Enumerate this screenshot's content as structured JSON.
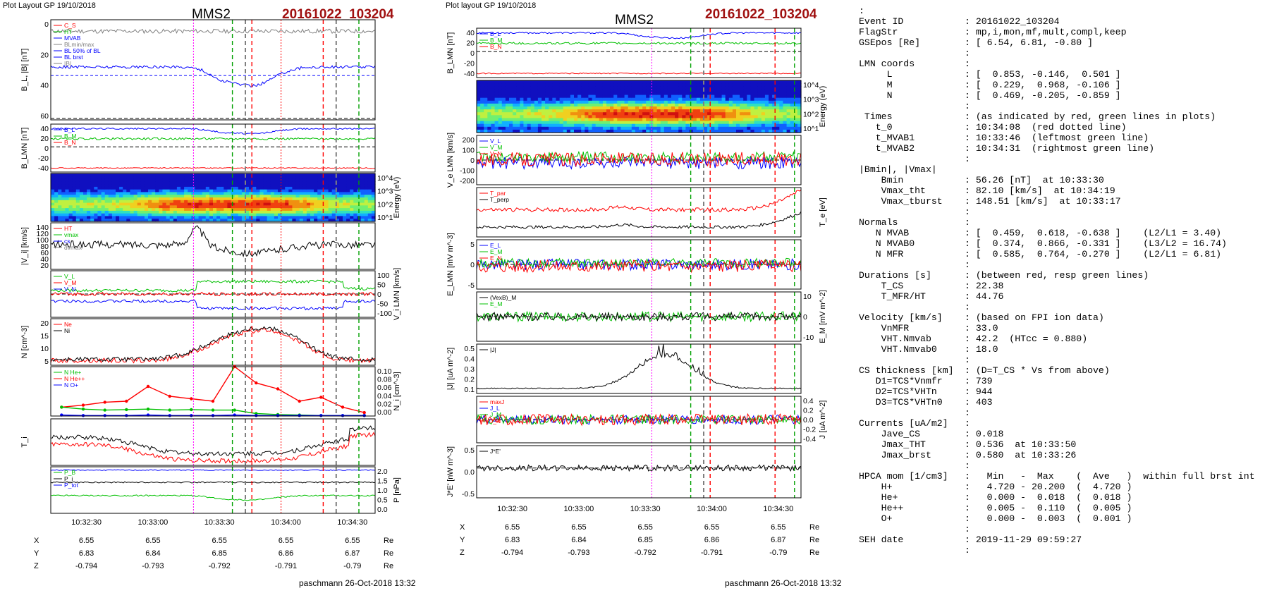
{
  "left_plot": {
    "header": "Plot Layout GP 19/10/2018",
    "spacecraft": "MMS2",
    "event": "20161022_103204",
    "footer": "paschmann 26-Oct-2018 13:32",
    "time_ticks": [
      "10:32:30",
      "10:33:00",
      "10:33:30",
      "10:34:00",
      "10:34:30"
    ],
    "position_table": {
      "labels": [
        "X",
        "Y",
        "Z"
      ],
      "unit": "Re",
      "rows": [
        [
          "6.55",
          "6.55",
          "6.55",
          "6.55",
          "6.55"
        ],
        [
          "6.83",
          "6.84",
          "6.85",
          "6.86",
          "6.87"
        ],
        [
          "-0.794",
          "-0.793",
          "-0.792",
          "-0.791",
          "-0.79"
        ]
      ]
    }
  },
  "right_plot": {
    "header": "Plot layout GP 19/10/2018",
    "spacecraft": "MMS2",
    "event": "20161022_103204",
    "footer": "paschmann 26-Oct-2018 13:32",
    "time_ticks": [
      "10:32:30",
      "10:33:00",
      "10:33:30",
      "10:34:00",
      "10:34:30"
    ],
    "position_table": {
      "labels": [
        "X",
        "Y",
        "Z"
      ],
      "unit": "Re",
      "rows": [
        [
          "6.55",
          "6.55",
          "6.55",
          "6.55",
          "6.55"
        ],
        [
          "6.83",
          "6.84",
          "6.85",
          "6.86",
          "6.87"
        ],
        [
          "-0.794",
          "-0.793",
          "-0.792",
          "-0.791",
          "-0.79"
        ]
      ]
    }
  },
  "summary": {
    "lead": ":",
    "rows": [
      {
        "k": "Event ID",
        "v": ": 20161022_103204"
      },
      {
        "k": "FlagStr",
        "v": ": mp,i,mon,mf,mult,compl,keep"
      },
      {
        "k": "GSEpos [Re]",
        "v": ": [ 6.54, 6.81, -0.80 ]"
      },
      {
        "k": "",
        "v": ":"
      },
      {
        "k": "LMN coords",
        "v": ":"
      },
      {
        "k": "     L",
        "v": ": [  0.853, -0.146,  0.501 ]"
      },
      {
        "k": "     M",
        "v": ": [  0.229,  0.968, -0.106 ]"
      },
      {
        "k": "     N",
        "v": ": [  0.469, -0.205, -0.859 ]"
      },
      {
        "k": "",
        "v": ":"
      },
      {
        "k": " Times",
        "v": ": (as indicated by red, green lines in plots)"
      },
      {
        "k": "   t_0",
        "v": ": 10:34:08  (red dotted line)"
      },
      {
        "k": "   t_MVAB1",
        "v": ": 10:33:46  (leftmost green line)"
      },
      {
        "k": "   t_MVAB2",
        "v": ": 10:34:31  (rightmost green line)"
      },
      {
        "k": "",
        "v": ":"
      },
      {
        "k": "|Bmin|, |Vmax|",
        "v": ""
      },
      {
        "k": "    Bmin",
        "v": ": 56.26 [nT]  at 10:33:30"
      },
      {
        "k": "    Vmax_tht",
        "v": ": 82.10 [km/s]  at 10:34:19"
      },
      {
        "k": "    Vmax_tburst",
        "v": ": 148.51 [km/s]  at 10:33:17"
      },
      {
        "k": "",
        "v": ":"
      },
      {
        "k": "Normals",
        "v": ":"
      },
      {
        "k": "   N MVAB",
        "v": ": [  0.459,  0.618, -0.638 ]    (L2/L1 = 3.40)"
      },
      {
        "k": "   N MVAB0",
        "v": ": [  0.374,  0.866, -0.331 ]    (L3/L2 = 16.74)"
      },
      {
        "k": "   N MFR",
        "v": ": [  0.585,  0.764, -0.270 ]    (L2/L1 = 6.81)"
      },
      {
        "k": "",
        "v": ":"
      },
      {
        "k": "Durations [s]",
        "v": ": (between red, resp green lines)"
      },
      {
        "k": "    T_CS",
        "v": ": 22.38"
      },
      {
        "k": "    T_MFR/HT",
        "v": ": 44.76"
      },
      {
        "k": "",
        "v": ":"
      },
      {
        "k": "Velocity [km/s]",
        "v": ": (based on FPI ion data)"
      },
      {
        "k": "    VnMFR",
        "v": ": 33.0"
      },
      {
        "k": "    VHT.Nmvab",
        "v": ": 42.2  (HTcc = 0.880)"
      },
      {
        "k": "    VHT.Nmvab0",
        "v": ": 18.0"
      },
      {
        "k": "",
        "v": ":"
      },
      {
        "k": "CS thickness [km]",
        "v": ": (D=T_CS * Vs from above)"
      },
      {
        "k": "   D1=TCS*Vnmfr",
        "v": ": 739"
      },
      {
        "k": "   D2=TCS*VHTn",
        "v": ": 944"
      },
      {
        "k": "   D3=TCS*VHTn0",
        "v": ": 403"
      },
      {
        "k": "",
        "v": ":"
      },
      {
        "k": "Currents [uA/m2]",
        "v": ":"
      },
      {
        "k": "    Jave_CS",
        "v": ": 0.018"
      },
      {
        "k": "    Jmax_THT",
        "v": ": 0.536  at 10:33:50"
      },
      {
        "k": "    Jmax_brst",
        "v": ": 0.580  at 10:33:26"
      },
      {
        "k": "",
        "v": ":"
      },
      {
        "k": "HPCA mom [1/cm3]",
        "v": ":   Min   -  Max    (  Ave   )  within full brst int"
      },
      {
        "k": "    H+",
        "v": ":   4.720 - 20.200  (  4.720 )"
      },
      {
        "k": "    He+",
        "v": ":   0.000 -  0.018  (  0.018 )"
      },
      {
        "k": "    He++",
        "v": ":   0.005 -  0.110  (  0.005 )"
      },
      {
        "k": "    O+",
        "v": ":   0.000 -  0.003  (  0.001 )"
      },
      {
        "k": "",
        "v": ":"
      },
      {
        "k": "SEH date",
        "v": ": 2019-11-29 09:59:27"
      },
      {
        "k": "",
        "v": ":"
      }
    ]
  },
  "chart_data": [
    {
      "type": "line",
      "id": "left-B",
      "ylabel": "B_L, |B| [nT]",
      "ylim": [
        0,
        70
      ],
      "yticks": [
        "0",
        "20",
        "40",
        "60"
      ],
      "legend": [
        "C_S",
        "HT",
        "MVAB",
        "BLmin/max",
        "BL 50% of BL",
        "BL brst",
        "|B|"
      ],
      "series": [
        {
          "name": "|B|",
          "color": "#808080",
          "shape": "flat",
          "base": 62,
          "amp": 3,
          "noise": 1.5
        },
        {
          "name": "BL brst",
          "color": "#0000ff",
          "shape": "dip",
          "base": 37,
          "amp": 13,
          "noise": 1
        }
      ],
      "hlines": [
        {
          "v": 31,
          "color": "#0000ff",
          "dash": "4,3"
        },
        {
          "v": 1,
          "color": "#000",
          "dash": "5,3"
        }
      ]
    },
    {
      "type": "line",
      "id": "left-BLMN",
      "ylabel": "B_LMN [nT]",
      "ylim": [
        -50,
        45
      ],
      "yticks": [
        "40",
        "20",
        "0",
        "-20",
        "-40"
      ],
      "legend": [
        "B_L",
        "B_M",
        "B_N"
      ],
      "series": [
        {
          "name": "B_L",
          "color": "#0000ff",
          "shape": "dip",
          "base": 36,
          "amp": 10,
          "noise": 1.5
        },
        {
          "name": "B_M",
          "color": "#00c000",
          "shape": "flat",
          "base": 16,
          "amp": 6,
          "noise": 2
        },
        {
          "name": "B_N",
          "color": "#ff0000",
          "shape": "flat",
          "base": -42,
          "amp": 2,
          "noise": 1
        }
      ],
      "hlines": [
        {
          "v": 0,
          "color": "#000",
          "dash": "5,3"
        }
      ]
    },
    {
      "type": "heatmap",
      "id": "left-spec",
      "ylabel": "Energy (eV)",
      "yticks": [
        "10^4",
        "10^3",
        "10^2",
        "10^1"
      ]
    },
    {
      "type": "line",
      "id": "left-Vi",
      "ylabel": "|V_i| [km/s]",
      "ylim": [
        0,
        150
      ],
      "yticks": [
        "140",
        "120",
        "100",
        "80",
        "60",
        "40",
        "20"
      ],
      "legend": [
        "HT",
        "vmax",
        "cs",
        "dvmax"
      ],
      "series": [
        {
          "name": "|Vi|",
          "color": "#000000",
          "shape": "vpeak",
          "base": 80,
          "amp": 55,
          "noise": 12
        }
      ]
    },
    {
      "type": "line",
      "id": "left-ViLMN",
      "ylabel": "V_i LMN [km/s]",
      "ylim": [
        -130,
        130
      ],
      "yticks": [
        "100",
        "50",
        "0",
        "-50",
        "-100"
      ],
      "legend": [
        "V_L",
        "V_M",
        "V_N"
      ],
      "series": [
        {
          "name": "V_L",
          "color": "#00c000",
          "shape": "rise",
          "base": 20,
          "amp": 50,
          "noise": 8
        },
        {
          "name": "V_M",
          "color": "#ff0000",
          "shape": "flat",
          "base": 0,
          "amp": 10,
          "noise": 10
        },
        {
          "name": "V_N",
          "color": "#0000ff",
          "shape": "drop",
          "base": -40,
          "amp": 40,
          "noise": 8
        }
      ],
      "hlines": [
        {
          "v": 0,
          "color": "#000",
          "dash": "5,3"
        }
      ]
    },
    {
      "type": "line",
      "id": "left-N",
      "ylabel": "N [cm^-3]",
      "ylim": [
        3,
        23
      ],
      "yticks": [
        "20",
        "15",
        "10",
        "5"
      ],
      "legend": [
        "Ne",
        "Ni"
      ],
      "series": [
        {
          "name": "Ne",
          "color": "#ff0000",
          "shape": "hump",
          "base": 5,
          "amp": 13,
          "noise": 1
        },
        {
          "name": "Ni",
          "color": "#000000",
          "shape": "hump",
          "base": 5.5,
          "amp": 13.5,
          "noise": 1
        }
      ]
    },
    {
      "type": "line",
      "id": "left-HPCA",
      "ylabel": "N_i [cm^-3]",
      "ylim": [
        0,
        0.1
      ],
      "yticks": [
        "0.10",
        "0.08",
        "0.06",
        "0.04",
        "0.02",
        "0.00"
      ],
      "legend": [
        "N He+",
        "N He++",
        "N O+"
      ],
      "series": [
        {
          "name": "N He++",
          "color": "#ff0000",
          "points": [
            0.018,
            0.022,
            0.028,
            0.03,
            0.06,
            0.04,
            0.035,
            0.03,
            0.11,
            0.067,
            0.055,
            0.03,
            0.038,
            0.018,
            0.007
          ]
        },
        {
          "name": "N He+",
          "color": "#00c000",
          "points": [
            0.018,
            0.014,
            0.012,
            0.013,
            0.014,
            0.012,
            0.013,
            0.012,
            0.012,
            0.005,
            0.003,
            0.002,
            0.001,
            0.001,
            0.001
          ]
        },
        {
          "name": "N O+",
          "color": "#0000ff",
          "points": [
            0.002,
            0.001,
            0.001,
            0.001,
            0.002,
            0.001,
            0.001,
            0.001,
            0.002,
            0.001,
            0.001,
            0.001,
            0.001,
            0.001,
            0.001
          ]
        }
      ]
    },
    {
      "type": "line",
      "id": "left-Ti",
      "ylabel": "T_i",
      "series": [
        {
          "name": "T_par",
          "color": "#000000",
          "shape": "valley",
          "base": 0.6,
          "amp": 0.35,
          "noise": 0.05
        },
        {
          "name": "T_perp",
          "color": "#ff0000",
          "shape": "valley",
          "base": 0.45,
          "amp": 0.35,
          "noise": 0.05
        }
      ]
    },
    {
      "type": "line",
      "id": "left-P",
      "ylabel": "P [nPa]",
      "ylim": [
        0,
        2.1
      ],
      "yticks": [
        "2.0",
        "1.5",
        "1.0",
        "0.5",
        "0.0"
      ],
      "legend": [
        "P_B",
        "P_i",
        "P_tot"
      ],
      "series": [
        {
          "name": "P_tot",
          "color": "#0000ff",
          "shape": "flat",
          "base": 1.95,
          "amp": 0.05,
          "noise": 0.02
        },
        {
          "name": "P_i",
          "color": "#000000",
          "shape": "flat",
          "base": 1.4,
          "amp": 0.1,
          "noise": 0.03
        },
        {
          "name": "P_B",
          "color": "#00c000",
          "shape": "dip",
          "base": 0.8,
          "amp": 0.2,
          "noise": 0.03
        }
      ]
    },
    {
      "type": "line",
      "id": "right-BLMN",
      "ylabel": "B_LMN [nT]",
      "ylim": [
        -50,
        45
      ],
      "yticks": [
        "40",
        "20",
        "0",
        "-20",
        "-40"
      ],
      "legend": [
        "B_L",
        "B_M",
        "B_N"
      ],
      "series": [
        {
          "name": "B_L",
          "color": "#0000ff",
          "shape": "dip",
          "base": 36,
          "amp": 10,
          "noise": 1.5
        },
        {
          "name": "B_M",
          "color": "#00c000",
          "shape": "flat",
          "base": 16,
          "amp": 6,
          "noise": 2
        },
        {
          "name": "B_N",
          "color": "#ff0000",
          "shape": "flat",
          "base": -42,
          "amp": 2,
          "noise": 1
        }
      ],
      "hlines": [
        {
          "v": 0,
          "color": "#000",
          "dash": "5,3"
        }
      ]
    },
    {
      "type": "heatmap",
      "id": "right-spec",
      "ylabel": "Energy (eV)",
      "yticks": [
        "10^4",
        "10^3",
        "10^2",
        "10^1"
      ]
    },
    {
      "type": "line",
      "id": "right-Ve",
      "ylabel": "V_e LMN [km/s]",
      "ylim": [
        -250,
        250
      ],
      "yticks": [
        "200",
        "100",
        "0",
        "-100",
        "-200"
      ],
      "legend": [
        "V_L",
        "V_M",
        "V_N"
      ],
      "series": [
        {
          "name": "V_L",
          "color": "#0000ff",
          "shape": "flat",
          "base": -30,
          "amp": 0,
          "noise": 60
        },
        {
          "name": "V_M",
          "color": "#00c000",
          "shape": "flat",
          "base": 30,
          "amp": 0,
          "noise": 55
        },
        {
          "name": "V_N",
          "color": "#ff0000",
          "shape": "flat",
          "base": 10,
          "amp": 0,
          "noise": 70
        }
      ],
      "hlines": [
        {
          "v": 0,
          "color": "#000",
          "dash": "5,3"
        }
      ]
    },
    {
      "type": "line",
      "id": "right-Te",
      "ylabel": "T_e [eV]",
      "legend": [
        "T_par",
        "T_perp"
      ],
      "series": [
        {
          "name": "T_par",
          "color": "#ff0000",
          "shape": "uend",
          "base": 0.55,
          "amp": 0.4,
          "noise": 0.04
        },
        {
          "name": "T_perp",
          "color": "#000000",
          "shape": "uend",
          "base": 0.2,
          "amp": 0.3,
          "noise": 0.03
        }
      ]
    },
    {
      "type": "line",
      "id": "right-E",
      "ylabel": "E_LMN [mV m^-3]",
      "ylim": [
        -8,
        8
      ],
      "yticks": [
        "5",
        "0",
        "-5"
      ],
      "legend": [
        "E_L",
        "E_M",
        "E_N"
      ],
      "series": [
        {
          "name": "E_L",
          "color": "#0000ff",
          "shape": "flat",
          "base": 0,
          "amp": 0,
          "noise": 1.8
        },
        {
          "name": "E_M",
          "color": "#00c000",
          "shape": "flat",
          "base": 0.5,
          "amp": 0,
          "noise": 1.5
        },
        {
          "name": "E_N",
          "color": "#ff0000",
          "shape": "flat",
          "base": -0.5,
          "amp": 0,
          "noise": 2
        }
      ],
      "hlines": [
        {
          "v": 0,
          "color": "#000",
          "dash": "5,3"
        }
      ]
    },
    {
      "type": "line",
      "id": "right-EM",
      "ylabel": "E_M [mV m^-2]",
      "ylim": [
        -15,
        15
      ],
      "yticks": [
        "10",
        "0",
        "-10"
      ],
      "legend": [
        "(VexB)_M",
        "E_M"
      ],
      "series": [
        {
          "name": "E_M",
          "color": "#00c000",
          "shape": "flat",
          "base": 0,
          "amp": 0,
          "noise": 3
        },
        {
          "name": "(VexB)_M",
          "color": "#000000",
          "shape": "flat",
          "base": 0,
          "amp": 0,
          "noise": 2.5
        }
      ],
      "hlines": [
        {
          "v": 0,
          "color": "#000",
          "dash": "5,3"
        }
      ]
    },
    {
      "type": "line",
      "id": "right-J",
      "ylabel": "|J| [uA m^-2]",
      "ylim": [
        0,
        0.55
      ],
      "yticks": [
        "0.5",
        "0.4",
        "0.3",
        "0.2",
        "0.1"
      ],
      "legend": [
        "|J|"
      ],
      "series": [
        {
          "name": "|J|",
          "color": "#000000",
          "shape": "spiky",
          "base": 0.05,
          "amp": 0.35,
          "noise": 0.04
        }
      ]
    },
    {
      "type": "line",
      "id": "right-Jlmn",
      "ylabel": "J [uA m^-2]",
      "ylim": [
        -0.5,
        0.5
      ],
      "yticks": [
        "0.4",
        "0.2",
        "0.0",
        "-0.2",
        "-0.4"
      ],
      "legend": [
        "maxJ",
        "J_L",
        "J_M",
        "J_N"
      ],
      "series": [
        {
          "name": "J_L",
          "color": "#0000ff",
          "shape": "flat",
          "base": 0,
          "amp": 0,
          "noise": 0.1
        },
        {
          "name": "J_M",
          "color": "#00c000",
          "shape": "flat",
          "base": 0,
          "amp": 0,
          "noise": 0.1
        },
        {
          "name": "J_N",
          "color": "#ff0000",
          "shape": "flat",
          "base": 0,
          "amp": 0,
          "noise": 0.12
        }
      ],
      "hlines": [
        {
          "v": 0,
          "color": "#000",
          "dash": "5,3"
        }
      ]
    },
    {
      "type": "line",
      "id": "right-JE",
      "ylabel": "J*E' [nW m^-3]",
      "ylim": [
        -0.8,
        0.6
      ],
      "yticks": [
        "0.5",
        "0.0",
        "-0.5"
      ],
      "legend": [
        "J*E'"
      ],
      "series": [
        {
          "name": "J*E'",
          "color": "#000000",
          "shape": "flat",
          "base": 0,
          "amp": 0,
          "noise": 0.08
        }
      ],
      "hlines": [
        {
          "v": 0,
          "color": "#000",
          "dash": "5,3"
        }
      ]
    }
  ]
}
